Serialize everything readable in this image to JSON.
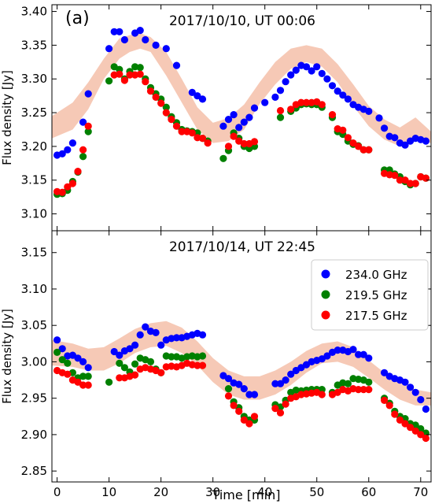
{
  "panel_label": "(a)",
  "xlabel": "Time [min]",
  "colors": {
    "f234": "#0000ff",
    "f2195": "#008000",
    "f2175": "#ff0000",
    "band": "#f6c9b6"
  },
  "legend": {
    "placement": "upper-right (bottom panel)",
    "entries": [
      "234.0 GHz",
      "219.5 GHz",
      "217.5 GHz"
    ]
  },
  "chart_data": [
    {
      "type": "scatter",
      "title": "2017/10/10, UT 00:06",
      "xlabel": "Time [min]",
      "ylabel": "Flux density [Jy]",
      "xlim": [
        -1,
        72
      ],
      "ylim": [
        3.075,
        3.41
      ],
      "xticks": [
        0,
        10,
        20,
        30,
        40,
        50,
        60,
        70
      ],
      "yticks": [
        3.1,
        3.15,
        3.2,
        3.25,
        3.3,
        3.35,
        3.4
      ],
      "yticklabels": [
        "3.10",
        "3.15",
        "3.20",
        "3.25",
        "3.30",
        "3.35",
        "3.40"
      ],
      "band": {
        "x": [
          -1,
          3,
          6,
          9,
          12,
          14,
          16,
          18,
          21,
          24,
          27,
          30,
          33,
          36,
          39,
          42,
          45,
          48,
          51,
          54,
          57,
          60,
          63,
          66,
          69,
          72
        ],
        "lo": [
          3.212,
          3.225,
          3.255,
          3.3,
          3.33,
          3.34,
          3.345,
          3.34,
          3.305,
          3.265,
          3.225,
          3.205,
          3.208,
          3.225,
          3.263,
          3.292,
          3.315,
          3.325,
          3.318,
          3.295,
          3.26,
          3.23,
          3.21,
          3.2,
          3.21,
          3.205
        ],
        "hi": [
          3.245,
          3.265,
          3.295,
          3.33,
          3.36,
          3.365,
          3.368,
          3.362,
          3.34,
          3.3,
          3.258,
          3.235,
          3.242,
          3.262,
          3.295,
          3.325,
          3.345,
          3.35,
          3.345,
          3.322,
          3.292,
          3.26,
          3.24,
          3.228,
          3.243,
          3.222
        ]
      },
      "series": [
        {
          "name": "234.0 GHz",
          "color": "#0000ff",
          "x": [
            0,
            1,
            2,
            3,
            5,
            6,
            10,
            11,
            12,
            13,
            15,
            16,
            17,
            19,
            21,
            23,
            26,
            27,
            28,
            32,
            33,
            34,
            35,
            36,
            37,
            38,
            40,
            42,
            43,
            44,
            45,
            46,
            47,
            48,
            49,
            50,
            51,
            52,
            53,
            54,
            55,
            56,
            57,
            58,
            59,
            60,
            62,
            63,
            64,
            65,
            66,
            67,
            68,
            69,
            70,
            71
          ],
          "y": [
            3.187,
            3.189,
            3.195,
            3.205,
            3.236,
            3.278,
            3.345,
            3.37,
            3.37,
            3.358,
            3.368,
            3.372,
            3.358,
            3.35,
            3.345,
            3.32,
            3.28,
            3.275,
            3.27,
            3.23,
            3.24,
            3.247,
            3.228,
            3.236,
            3.243,
            3.257,
            3.265,
            3.273,
            3.283,
            3.296,
            3.306,
            3.313,
            3.32,
            3.318,
            3.312,
            3.318,
            3.308,
            3.3,
            3.29,
            3.282,
            3.276,
            3.27,
            3.262,
            3.258,
            3.255,
            3.252,
            3.242,
            3.227,
            3.215,
            3.213,
            3.205,
            3.202,
            3.208,
            3.212,
            3.21,
            3.208
          ]
        },
        {
          "name": "219.5 GHz",
          "color": "#008000",
          "x": [
            0,
            1,
            2,
            3,
            4,
            5,
            6,
            10,
            11,
            12,
            13,
            14,
            15,
            16,
            17,
            18,
            19,
            20,
            21,
            22,
            23,
            24,
            25,
            26,
            27,
            28,
            29,
            32,
            33,
            34,
            35,
            36,
            37,
            38,
            43,
            45,
            46,
            47,
            48,
            49,
            50,
            51,
            53,
            54,
            55,
            56,
            57,
            58,
            59,
            60,
            63,
            64,
            65,
            66,
            67,
            68,
            69,
            70,
            71
          ],
          "y": [
            3.129,
            3.13,
            3.135,
            3.148,
            3.162,
            3.185,
            3.222,
            3.297,
            3.318,
            3.314,
            3.3,
            3.311,
            3.318,
            3.317,
            3.3,
            3.287,
            3.278,
            3.27,
            3.258,
            3.244,
            3.235,
            3.225,
            3.223,
            3.222,
            3.22,
            3.212,
            3.208,
            3.182,
            3.194,
            3.22,
            3.212,
            3.2,
            3.197,
            3.2,
            3.243,
            3.252,
            3.257,
            3.262,
            3.263,
            3.262,
            3.262,
            3.258,
            3.243,
            3.222,
            3.218,
            3.208,
            3.203,
            3.201,
            3.195,
            3.195,
            3.165,
            3.165,
            3.159,
            3.155,
            3.148,
            3.143,
            3.145,
            3.155,
            3.153
          ]
        },
        {
          "name": "217.5 GHz",
          "color": "#ff0000",
          "x": [
            0,
            1,
            2,
            3,
            4,
            5,
            6,
            11,
            12,
            13,
            14,
            15,
            16,
            17,
            18,
            19,
            20,
            21,
            22,
            23,
            24,
            25,
            26,
            27,
            28,
            29,
            33,
            34,
            35,
            36,
            37,
            38,
            43,
            45,
            46,
            47,
            48,
            49,
            50,
            51,
            53,
            54,
            55,
            56,
            57,
            58,
            59,
            60,
            63,
            64,
            65,
            66,
            67,
            68,
            69,
            70,
            71
          ],
          "y": [
            3.133,
            3.132,
            3.14,
            3.145,
            3.163,
            3.195,
            3.23,
            3.306,
            3.307,
            3.298,
            3.306,
            3.306,
            3.307,
            3.296,
            3.282,
            3.273,
            3.264,
            3.25,
            3.24,
            3.23,
            3.222,
            3.222,
            3.22,
            3.213,
            3.212,
            3.205,
            3.2,
            3.215,
            3.208,
            3.204,
            3.204,
            3.207,
            3.253,
            3.255,
            3.262,
            3.265,
            3.265,
            3.265,
            3.266,
            3.262,
            3.247,
            3.226,
            3.224,
            3.213,
            3.205,
            3.2,
            3.195,
            3.195,
            3.16,
            3.158,
            3.157,
            3.15,
            3.15,
            3.145,
            3.145,
            3.155,
            3.153
          ]
        }
      ]
    },
    {
      "type": "scatter",
      "title": "2017/10/14, UT 22:45",
      "xlabel": "Time [min]",
      "ylabel": "Flux density [Jy]",
      "xlim": [
        -1,
        72
      ],
      "ylim": [
        2.835,
        3.18
      ],
      "xticks": [
        0,
        10,
        20,
        30,
        40,
        50,
        60,
        70
      ],
      "yticks": [
        2.85,
        2.9,
        2.95,
        3.0,
        3.05,
        3.1,
        3.15
      ],
      "yticklabels": [
        "2.85",
        "2.90",
        "2.95",
        "3.00",
        "3.05",
        "3.10",
        "3.15"
      ],
      "band": {
        "x": [
          -1,
          3,
          6,
          9,
          12,
          15,
          18,
          21,
          24,
          27,
          30,
          33,
          36,
          39,
          42,
          45,
          48,
          51,
          54,
          57,
          60,
          63,
          66,
          69,
          72
        ],
        "lo": [
          2.995,
          2.993,
          2.988,
          2.988,
          2.998,
          3.012,
          3.02,
          3.022,
          3.012,
          2.995,
          2.972,
          2.955,
          2.948,
          2.948,
          2.955,
          2.968,
          2.985,
          2.998,
          3.0,
          2.993,
          2.978,
          2.962,
          2.948,
          2.94,
          2.94
        ],
        "hi": [
          3.03,
          3.025,
          3.018,
          3.02,
          3.032,
          3.045,
          3.053,
          3.056,
          3.047,
          3.028,
          3.005,
          2.988,
          2.98,
          2.98,
          2.988,
          3.0,
          3.015,
          3.025,
          3.028,
          3.02,
          3.002,
          2.985,
          2.972,
          2.962,
          2.958
        ]
      },
      "series": [
        {
          "name": "234.0 GHz",
          "color": "#0000ff",
          "x": [
            0,
            1,
            2,
            3,
            4,
            5,
            6,
            11,
            12,
            13,
            14,
            15,
            16,
            17,
            18,
            19,
            20,
            21,
            22,
            23,
            24,
            25,
            26,
            27,
            28,
            32,
            33,
            34,
            35,
            36,
            37,
            38,
            42,
            43,
            44,
            45,
            46,
            47,
            48,
            49,
            50,
            51,
            52,
            53,
            54,
            55,
            56,
            57,
            58,
            59,
            60,
            63,
            64,
            65,
            66,
            67,
            68,
            69,
            70,
            71
          ],
          "y": [
            3.03,
            3.018,
            3.008,
            3.009,
            3.005,
            3.0,
            2.992,
            3.014,
            3.009,
            3.015,
            3.018,
            3.023,
            3.037,
            3.048,
            3.042,
            3.04,
            3.023,
            3.03,
            3.032,
            3.033,
            3.033,
            3.035,
            3.037,
            3.039,
            3.037,
            2.981,
            2.977,
            2.971,
            2.969,
            2.963,
            2.955,
            2.955,
            2.97,
            2.97,
            2.975,
            2.983,
            2.988,
            2.992,
            2.996,
            3.0,
            3.002,
            3.004,
            3.008,
            3.013,
            3.016,
            3.016,
            3.014,
            3.017,
            3.01,
            3.01,
            3.005,
            2.985,
            2.98,
            2.977,
            2.975,
            2.972,
            2.965,
            2.958,
            2.948,
            2.935
          ]
        },
        {
          "name": "219.5 GHz",
          "color": "#008000",
          "x": [
            0,
            1,
            2,
            3,
            4,
            5,
            6,
            10,
            12,
            13,
            14,
            15,
            16,
            17,
            18,
            19,
            20,
            21,
            22,
            23,
            24,
            25,
            26,
            27,
            28,
            33,
            34,
            35,
            36,
            37,
            38,
            42,
            43,
            44,
            45,
            46,
            47,
            48,
            49,
            50,
            51,
            53,
            54,
            55,
            56,
            57,
            58,
            59,
            60,
            63,
            64,
            65,
            66,
            67,
            68,
            69,
            70,
            71
          ],
          "y": [
            3.013,
            3.003,
            2.998,
            2.985,
            2.978,
            2.98,
            2.98,
            2.972,
            2.998,
            2.992,
            2.986,
            2.997,
            3.005,
            3.003,
            3.0,
            2.99,
            2.985,
            3.008,
            3.007,
            3.007,
            3.005,
            3.007,
            3.008,
            3.007,
            3.008,
            2.963,
            2.945,
            2.937,
            2.925,
            2.92,
            2.92,
            2.941,
            2.938,
            2.947,
            2.958,
            2.961,
            2.96,
            2.961,
            2.962,
            2.962,
            2.962,
            2.958,
            2.968,
            2.971,
            2.97,
            2.977,
            2.976,
            2.975,
            2.972,
            2.95,
            2.943,
            2.932,
            2.925,
            2.922,
            2.915,
            2.913,
            2.908,
            2.902
          ]
        },
        {
          "name": "217.5 GHz",
          "color": "#ff0000",
          "x": [
            0,
            1,
            2,
            3,
            4,
            5,
            6,
            12,
            13,
            14,
            15,
            16,
            17,
            18,
            19,
            20,
            21,
            22,
            23,
            24,
            25,
            26,
            27,
            28,
            33,
            34,
            35,
            36,
            37,
            38,
            42,
            43,
            44,
            45,
            46,
            47,
            48,
            49,
            50,
            51,
            53,
            54,
            55,
            56,
            57,
            58,
            59,
            60,
            63,
            64,
            65,
            66,
            67,
            68,
            69,
            70,
            71
          ],
          "y": [
            2.988,
            2.985,
            2.983,
            2.975,
            2.972,
            2.968,
            2.968,
            2.978,
            2.978,
            2.98,
            2.982,
            2.99,
            2.992,
            2.99,
            2.988,
            2.985,
            2.993,
            2.994,
            2.993,
            2.995,
            2.998,
            2.996,
            2.995,
            2.995,
            2.953,
            2.94,
            2.932,
            2.92,
            2.915,
            2.925,
            2.936,
            2.93,
            2.942,
            2.95,
            2.952,
            2.955,
            2.956,
            2.957,
            2.958,
            2.955,
            2.955,
            2.958,
            2.962,
            2.96,
            2.963,
            2.962,
            2.962,
            2.962,
            2.947,
            2.94,
            2.928,
            2.92,
            2.915,
            2.91,
            2.905,
            2.9,
            2.895
          ]
        }
      ]
    }
  ]
}
